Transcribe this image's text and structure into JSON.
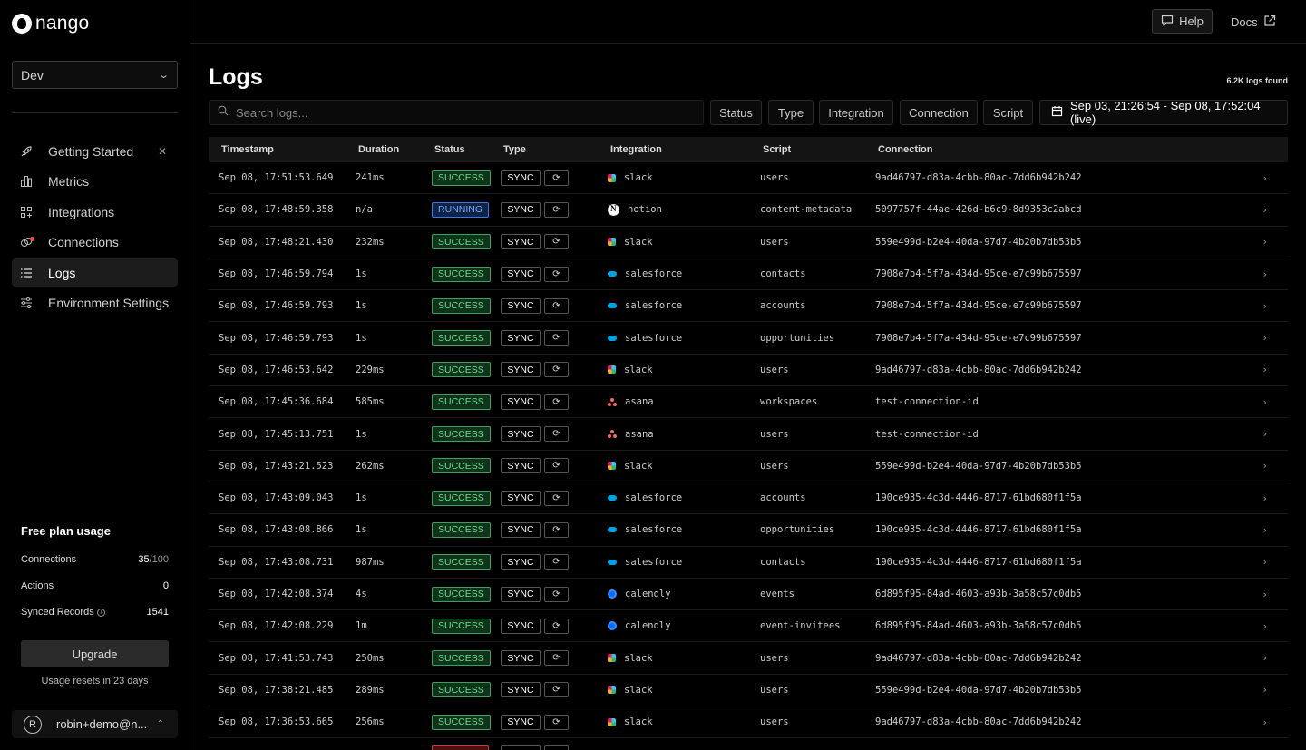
{
  "app": {
    "name": "nango"
  },
  "sidebar": {
    "environment": "Dev",
    "nav": [
      {
        "label": "Getting Started",
        "icon": "rocket-icon",
        "closable": true
      },
      {
        "label": "Metrics",
        "icon": "bar-chart-icon"
      },
      {
        "label": "Integrations",
        "icon": "grid-icon"
      },
      {
        "label": "Connections",
        "icon": "link-icon"
      },
      {
        "label": "Logs",
        "icon": "list-icon",
        "active": true
      },
      {
        "label": "Environment Settings",
        "icon": "sliders-icon"
      }
    ],
    "usage": {
      "title": "Free plan usage",
      "connections_label": "Connections",
      "connections_value": "35",
      "connections_max": "/100",
      "actions_label": "Actions",
      "actions_value": "0",
      "synced_label": "Synced Records",
      "synced_value": "1541",
      "upgrade_label": "Upgrade",
      "reset_text": "Usage resets in 23 days"
    },
    "user": {
      "initial": "R",
      "email": "robin+demo@n..."
    }
  },
  "topbar": {
    "help_label": "Help",
    "docs_label": "Docs"
  },
  "main": {
    "title": "Logs",
    "count": "6.2K logs found",
    "search_placeholder": "Search logs...",
    "filters": [
      "Status",
      "Type",
      "Integration",
      "Connection",
      "Script"
    ],
    "date_range": "Sep 03, 21:26:54 - Sep 08, 17:52:04 (live)"
  },
  "table": {
    "headers": [
      "Timestamp",
      "Duration",
      "Status",
      "Type",
      "Integration",
      "Script",
      "Connection"
    ],
    "rows": [
      {
        "ts": "Sep 08, 17:51:53.649",
        "dur": "241ms",
        "status": "SUCCESS",
        "type": "SYNC",
        "integration": "slack",
        "script": "users",
        "conn": "9ad46797-d83a-4cbb-80ac-7dd6b942b242"
      },
      {
        "ts": "Sep 08, 17:48:59.358",
        "dur": "n/a",
        "status": "RUNNING",
        "type": "SYNC",
        "integration": "notion",
        "script": "content-metadata",
        "conn": "5097757f-44ae-426d-b6c9-8d9353c2abcd"
      },
      {
        "ts": "Sep 08, 17:48:21.430",
        "dur": "232ms",
        "status": "SUCCESS",
        "type": "SYNC",
        "integration": "slack",
        "script": "users",
        "conn": "559e499d-b2e4-40da-97d7-4b20b7db53b5"
      },
      {
        "ts": "Sep 08, 17:46:59.794",
        "dur": "1s",
        "status": "SUCCESS",
        "type": "SYNC",
        "integration": "salesforce",
        "script": "contacts",
        "conn": "7908e7b4-5f7a-434d-95ce-e7c99b675597"
      },
      {
        "ts": "Sep 08, 17:46:59.793",
        "dur": "1s",
        "status": "SUCCESS",
        "type": "SYNC",
        "integration": "salesforce",
        "script": "accounts",
        "conn": "7908e7b4-5f7a-434d-95ce-e7c99b675597"
      },
      {
        "ts": "Sep 08, 17:46:59.793",
        "dur": "1s",
        "status": "SUCCESS",
        "type": "SYNC",
        "integration": "salesforce",
        "script": "opportunities",
        "conn": "7908e7b4-5f7a-434d-95ce-e7c99b675597"
      },
      {
        "ts": "Sep 08, 17:46:53.642",
        "dur": "229ms",
        "status": "SUCCESS",
        "type": "SYNC",
        "integration": "slack",
        "script": "users",
        "conn": "9ad46797-d83a-4cbb-80ac-7dd6b942b242"
      },
      {
        "ts": "Sep 08, 17:45:36.684",
        "dur": "585ms",
        "status": "SUCCESS",
        "type": "SYNC",
        "integration": "asana",
        "script": "workspaces",
        "conn": "test-connection-id"
      },
      {
        "ts": "Sep 08, 17:45:13.751",
        "dur": "1s",
        "status": "SUCCESS",
        "type": "SYNC",
        "integration": "asana",
        "script": "users",
        "conn": "test-connection-id"
      },
      {
        "ts": "Sep 08, 17:43:21.523",
        "dur": "262ms",
        "status": "SUCCESS",
        "type": "SYNC",
        "integration": "slack",
        "script": "users",
        "conn": "559e499d-b2e4-40da-97d7-4b20b7db53b5"
      },
      {
        "ts": "Sep 08, 17:43:09.043",
        "dur": "1s",
        "status": "SUCCESS",
        "type": "SYNC",
        "integration": "salesforce",
        "script": "accounts",
        "conn": "190ce935-4c3d-4446-8717-61bd680f1f5a"
      },
      {
        "ts": "Sep 08, 17:43:08.866",
        "dur": "1s",
        "status": "SUCCESS",
        "type": "SYNC",
        "integration": "salesforce",
        "script": "opportunities",
        "conn": "190ce935-4c3d-4446-8717-61bd680f1f5a"
      },
      {
        "ts": "Sep 08, 17:43:08.731",
        "dur": "987ms",
        "status": "SUCCESS",
        "type": "SYNC",
        "integration": "salesforce",
        "script": "contacts",
        "conn": "190ce935-4c3d-4446-8717-61bd680f1f5a"
      },
      {
        "ts": "Sep 08, 17:42:08.374",
        "dur": "4s",
        "status": "SUCCESS",
        "type": "SYNC",
        "integration": "calendly",
        "script": "events",
        "conn": "6d895f95-84ad-4603-a93b-3a58c57c0db5"
      },
      {
        "ts": "Sep 08, 17:42:08.229",
        "dur": "1m",
        "status": "SUCCESS",
        "type": "SYNC",
        "integration": "calendly",
        "script": "event-invitees",
        "conn": "6d895f95-84ad-4603-a93b-3a58c57c0db5"
      },
      {
        "ts": "Sep 08, 17:41:53.743",
        "dur": "250ms",
        "status": "SUCCESS",
        "type": "SYNC",
        "integration": "slack",
        "script": "users",
        "conn": "9ad46797-d83a-4cbb-80ac-7dd6b942b242"
      },
      {
        "ts": "Sep 08, 17:38:21.485",
        "dur": "289ms",
        "status": "SUCCESS",
        "type": "SYNC",
        "integration": "slack",
        "script": "users",
        "conn": "559e499d-b2e4-40da-97d7-4b20b7db53b5"
      },
      {
        "ts": "Sep 08, 17:36:53.665",
        "dur": "256ms",
        "status": "SUCCESS",
        "type": "SYNC",
        "integration": "slack",
        "script": "users",
        "conn": "9ad46797-d83a-4cbb-80ac-7dd6b942b242"
      }
    ]
  }
}
